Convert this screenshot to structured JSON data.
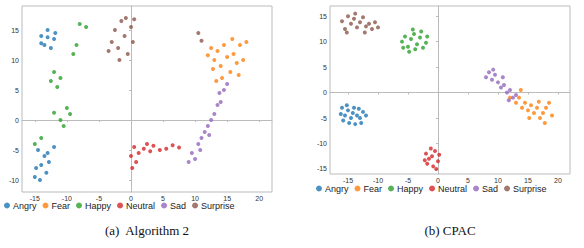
{
  "chart_data": [
    {
      "type": "scatter",
      "title": "(a)  Algorithm 2",
      "legend": "bottom",
      "marker": "circle",
      "grid": false,
      "xlim": [
        -17,
        22
      ],
      "xticks": [
        -15,
        -10,
        -5,
        0,
        5,
        10,
        15,
        20
      ],
      "ylim": [
        -12,
        19
      ],
      "yticks": [
        -10,
        -5,
        0,
        5,
        10,
        15
      ],
      "series": [
        {
          "name": "Angry",
          "color": "#1f77b4",
          "values": [
            [
              -14,
              14
            ],
            [
              -13,
              15
            ],
            [
              -12,
              13.5
            ],
            [
              -13.5,
              12.5
            ],
            [
              -12.5,
              12
            ],
            [
              -14,
              12.8
            ],
            [
              -13,
              13.8
            ],
            [
              -11.8,
              14.5
            ],
            [
              -14.5,
              -5
            ],
            [
              -13.5,
              -6
            ],
            [
              -14,
              -7.5
            ],
            [
              -13,
              -5.5
            ],
            [
              -14.8,
              -8
            ],
            [
              -13.2,
              -8.8
            ],
            [
              -14.2,
              -10
            ],
            [
              -12.8,
              -7
            ],
            [
              -15,
              -9.5
            ],
            [
              -12,
              -4.5
            ]
          ]
        },
        {
          "name": "Fear",
          "color": "#ff7f0e",
          "values": [
            [
              12.5,
              12
            ],
            [
              13,
              10
            ],
            [
              13.5,
              11.5
            ],
            [
              14,
              9
            ],
            [
              14.5,
              12.5
            ],
            [
              15,
              10.5
            ],
            [
              15.5,
              8
            ],
            [
              16,
              11
            ],
            [
              16.5,
              9.5
            ],
            [
              17,
              12.5
            ],
            [
              17.5,
              10
            ],
            [
              18,
              13
            ],
            [
              14.2,
              7
            ],
            [
              12.8,
              8.5
            ],
            [
              15.8,
              13.5
            ],
            [
              13.3,
              6.5
            ],
            [
              16.8,
              7.5
            ],
            [
              12,
              10.8
            ]
          ]
        },
        {
          "name": "Happy",
          "color": "#2ca02c",
          "values": [
            [
              -12,
              8
            ],
            [
              -11,
              7
            ],
            [
              -11.5,
              5.5
            ],
            [
              -12.5,
              6.5
            ],
            [
              -10,
              2
            ],
            [
              -11,
              0
            ],
            [
              -12,
              1.2
            ],
            [
              -10.5,
              -1
            ],
            [
              -9.5,
              1
            ],
            [
              -15,
              -4
            ],
            [
              -14,
              -3
            ],
            [
              -8,
              16
            ],
            [
              -7,
              15.5
            ],
            [
              -9,
              11
            ],
            [
              -8.5,
              12.5
            ]
          ]
        },
        {
          "name": "Neutral",
          "color": "#d62728",
          "values": [
            [
              0,
              -6
            ],
            [
              0.5,
              -4.5
            ],
            [
              1.2,
              -5.5
            ],
            [
              2,
              -4.8
            ],
            [
              3,
              -5.2
            ],
            [
              3.5,
              -4.3
            ],
            [
              4.5,
              -5
            ],
            [
              5.5,
              -4.8
            ],
            [
              6.5,
              -4.2
            ],
            [
              0.2,
              -8
            ],
            [
              0.8,
              -7
            ],
            [
              2.5,
              -4
            ],
            [
              7.5,
              -4.6
            ]
          ]
        },
        {
          "name": "Sad",
          "color": "#9467bd",
          "values": [
            [
              9,
              -7
            ],
            [
              9.5,
              -5.5
            ],
            [
              10,
              -6.5
            ],
            [
              10.5,
              -4
            ],
            [
              11,
              -3
            ],
            [
              11.5,
              -2
            ],
            [
              12,
              -1
            ],
            [
              12.5,
              0
            ],
            [
              13,
              1
            ],
            [
              13.5,
              2.5
            ],
            [
              14,
              3
            ],
            [
              13.8,
              4.5
            ],
            [
              14.5,
              5
            ],
            [
              15,
              6
            ],
            [
              10.8,
              -5
            ],
            [
              12.2,
              -2.5
            ]
          ]
        },
        {
          "name": "Surprise",
          "color": "#8c564b",
          "values": [
            [
              -3,
              13
            ],
            [
              -2.5,
              15
            ],
            [
              -2,
              12
            ],
            [
              -1.5,
              16.5
            ],
            [
              -1,
              14
            ],
            [
              -0.5,
              11
            ],
            [
              0,
              15.5
            ],
            [
              0.3,
              13
            ],
            [
              -1.8,
              10
            ],
            [
              -3.5,
              11.5
            ],
            [
              -0.8,
              17
            ],
            [
              0.5,
              16.8
            ],
            [
              10.5,
              14.5
            ],
            [
              11,
              13.2
            ]
          ]
        }
      ]
    },
    {
      "type": "scatter",
      "title": "(b) CPAC",
      "legend": "bottom",
      "marker": "circle",
      "grid": false,
      "xlim": [
        -18,
        22
      ],
      "xticks": [
        -15,
        -10,
        -5,
        0,
        5,
        10,
        15,
        20
      ],
      "ylim": [
        -16,
        17
      ],
      "yticks": [
        -15,
        -10,
        -5,
        0,
        5,
        10,
        15
      ],
      "series": [
        {
          "name": "Angry",
          "color": "#1f77b4",
          "values": [
            [
              -16,
              -3
            ],
            [
              -15.5,
              -4.5
            ],
            [
              -15,
              -3.5
            ],
            [
              -14.5,
              -5
            ],
            [
              -14,
              -3
            ],
            [
              -13.5,
              -4.5
            ],
            [
              -13,
              -5
            ],
            [
              -12.5,
              -3.8
            ],
            [
              -12,
              -4.5
            ],
            [
              -14.8,
              -6
            ],
            [
              -13.8,
              -6.2
            ],
            [
              -15.8,
              -5.5
            ],
            [
              -12.8,
              -6
            ],
            [
              -14.2,
              -4
            ],
            [
              -13.2,
              -3.2
            ],
            [
              -15.2,
              -2.5
            ],
            [
              -16.2,
              -4.2
            ]
          ]
        },
        {
          "name": "Fear",
          "color": "#ff7f0e",
          "values": [
            [
              12,
              -1
            ],
            [
              13,
              -2
            ],
            [
              13.5,
              -1
            ],
            [
              14,
              -3
            ],
            [
              14.5,
              -2
            ],
            [
              15,
              -3.5
            ],
            [
              15.5,
              -2.5
            ],
            [
              16,
              -4
            ],
            [
              16.5,
              -3
            ],
            [
              17,
              -5
            ],
            [
              17.5,
              -4
            ],
            [
              18,
              -3
            ],
            [
              18.5,
              -2
            ],
            [
              19,
              -4.5
            ],
            [
              15.2,
              -5
            ],
            [
              16.8,
              -1.8
            ],
            [
              13.8,
              0.5
            ],
            [
              17.8,
              -6
            ]
          ]
        },
        {
          "name": "Happy",
          "color": "#2ca02c",
          "values": [
            [
              -6,
              10
            ],
            [
              -5.5,
              11
            ],
            [
              -5,
              9
            ],
            [
              -4.5,
              10.5
            ],
            [
              -4,
              11.5
            ],
            [
              -3.5,
              9.5
            ],
            [
              -3,
              10.8
            ],
            [
              -2.5,
              8.8
            ],
            [
              -2,
              9.8
            ],
            [
              -4.8,
              8
            ],
            [
              -3.8,
              8.5
            ],
            [
              -2.8,
              12
            ],
            [
              -5.8,
              8.8
            ],
            [
              -1.8,
              11
            ],
            [
              -4.2,
              12.4
            ]
          ]
        },
        {
          "name": "Neutral",
          "color": "#d62728",
          "values": [
            [
              -2,
              -12
            ],
            [
              -1.5,
              -13
            ],
            [
              -1,
              -12.5
            ],
            [
              -0.5,
              -11.5
            ],
            [
              0,
              -13.5
            ],
            [
              -1.8,
              -14
            ],
            [
              -0.8,
              -14.5
            ],
            [
              -1.2,
              -11
            ],
            [
              0.2,
              -12.2
            ],
            [
              -2.2,
              -13.3
            ],
            [
              -0.3,
              -15
            ]
          ]
        },
        {
          "name": "Sad",
          "color": "#9467bd",
          "values": [
            [
              8,
              3
            ],
            [
              8.5,
              4
            ],
            [
              9,
              2.5
            ],
            [
              9.5,
              3.5
            ],
            [
              10,
              2
            ],
            [
              10.5,
              1
            ],
            [
              11,
              1.5
            ],
            [
              11.5,
              0
            ],
            [
              12,
              0.5
            ],
            [
              12.5,
              -1
            ],
            [
              9.2,
              4.5
            ],
            [
              10.8,
              3
            ],
            [
              13,
              -0.5
            ],
            [
              11.8,
              -1.5
            ]
          ]
        },
        {
          "name": "Surprise",
          "color": "#8c564b",
          "values": [
            [
              -16,
              14
            ],
            [
              -15.5,
              12.5
            ],
            [
              -15,
              15
            ],
            [
              -14.5,
              13.5
            ],
            [
              -14,
              14.5
            ],
            [
              -13.5,
              12.8
            ],
            [
              -13,
              13.8
            ],
            [
              -12.5,
              14.8
            ],
            [
              -12,
              13
            ],
            [
              -11.5,
              13.5
            ],
            [
              -11,
              12.5
            ],
            [
              -10.5,
              13.8
            ],
            [
              -15.2,
              11.8
            ],
            [
              -13.8,
              15.5
            ],
            [
              -12.2,
              11.8
            ],
            [
              -10,
              12.8
            ]
          ]
        }
      ]
    }
  ]
}
